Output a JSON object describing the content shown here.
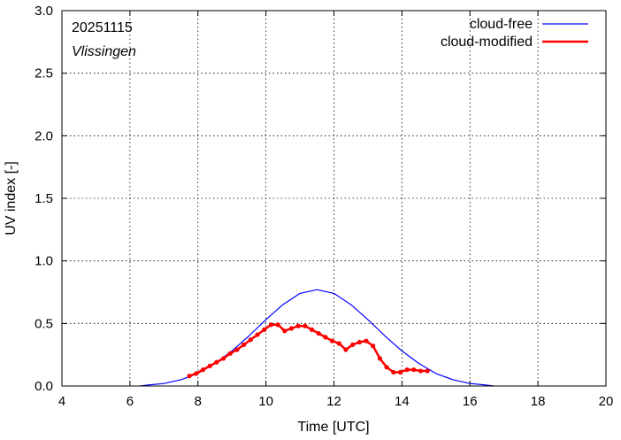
{
  "chart_data": {
    "type": "line",
    "xlabel": "Time  [UTC]",
    "ylabel": "UV index  [-]",
    "xlim": [
      4,
      20
    ],
    "ylim": [
      0,
      3
    ],
    "x_ticks": [
      4,
      6,
      8,
      10,
      12,
      14,
      16,
      18,
      20
    ],
    "x_tick_labels": [
      "4",
      "6",
      "8",
      "10",
      "12",
      "14",
      "16",
      "18",
      "20"
    ],
    "y_ticks": [
      0,
      0.5,
      1,
      1.5,
      2,
      2.5,
      3
    ],
    "y_tick_labels": [
      "0.0",
      "0.5",
      "1.0",
      "1.5",
      "2.0",
      "2.5",
      "3.0"
    ],
    "grid": true,
    "legend_position": "top-right",
    "annotations": {
      "date": "20251115",
      "location": "Vlissingen"
    },
    "series": [
      {
        "name": "cloud-free",
        "color": "#0000ff",
        "style": "line",
        "x": [
          6.3,
          6.6,
          7.0,
          7.5,
          8.0,
          8.5,
          9.0,
          9.5,
          10.0,
          10.5,
          11.0,
          11.5,
          12.0,
          12.5,
          13.0,
          13.5,
          14.0,
          14.5,
          15.0,
          15.5,
          16.0,
          16.4,
          16.7
        ],
        "values": [
          0.0,
          0.01,
          0.02,
          0.05,
          0.1,
          0.18,
          0.28,
          0.4,
          0.53,
          0.65,
          0.74,
          0.77,
          0.74,
          0.65,
          0.53,
          0.4,
          0.28,
          0.18,
          0.1,
          0.05,
          0.02,
          0.01,
          0.0
        ]
      },
      {
        "name": "cloud-modified",
        "color": "#ff0000",
        "style": "line-points",
        "x": [
          7.75,
          7.95,
          8.15,
          8.35,
          8.55,
          8.75,
          8.95,
          9.15,
          9.35,
          9.55,
          9.75,
          9.95,
          10.15,
          10.35,
          10.55,
          10.75,
          10.95,
          11.15,
          11.35,
          11.55,
          11.75,
          11.95,
          12.15,
          12.35,
          12.55,
          12.75,
          12.95,
          13.15,
          13.35,
          13.55,
          13.75,
          13.95,
          14.15,
          14.35,
          14.55,
          14.75
        ],
        "values": [
          0.08,
          0.1,
          0.13,
          0.16,
          0.19,
          0.22,
          0.26,
          0.29,
          0.33,
          0.37,
          0.41,
          0.45,
          0.49,
          0.49,
          0.44,
          0.46,
          0.48,
          0.48,
          0.45,
          0.42,
          0.39,
          0.36,
          0.34,
          0.29,
          0.33,
          0.35,
          0.36,
          0.32,
          0.22,
          0.15,
          0.11,
          0.11,
          0.13,
          0.13,
          0.12,
          0.12
        ]
      }
    ]
  }
}
